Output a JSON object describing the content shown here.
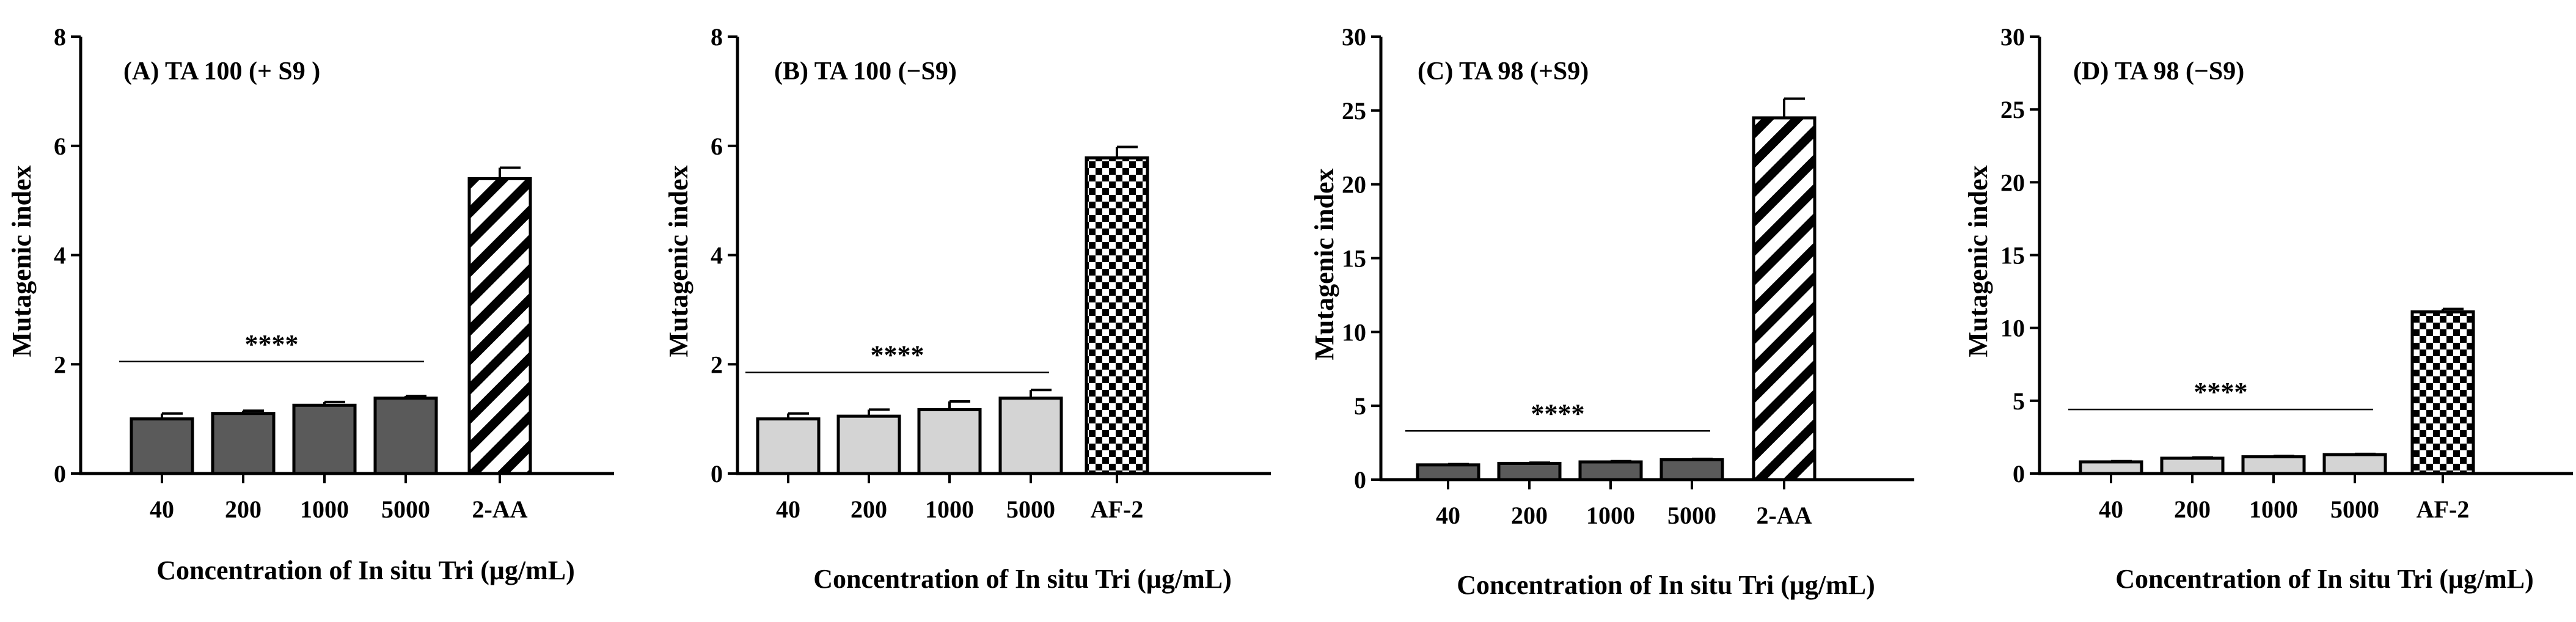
{
  "colors": {
    "dark_bar": "#5a5a5a",
    "light_bar": "#d4d4d4",
    "axis": "#000000",
    "background": "#ffffff"
  },
  "chart_data": [
    {
      "id": "A",
      "type": "bar",
      "title": "(A) TA 100 (+ S9 )",
      "ylabel": "Mutagenic index",
      "xlabel": "Concentration of In situ Tri (μg/mL)",
      "ylim": [
        0,
        8
      ],
      "yticks": [
        "0",
        "2",
        "4",
        "6",
        "8"
      ],
      "categories": [
        "40",
        "200",
        "1000",
        "5000",
        "2-AA"
      ],
      "values": [
        1.0,
        1.1,
        1.25,
        1.38,
        5.4
      ],
      "errors": [
        0.1,
        0.05,
        0.06,
        0.04,
        0.2
      ],
      "fills": [
        "solid-dark",
        "solid-dark",
        "solid-dark",
        "solid-dark",
        "diagonal"
      ],
      "significance": "****",
      "significance_y": 2.05,
      "significance_span": [
        0,
        3
      ]
    },
    {
      "id": "B",
      "type": "bar",
      "title": "(B) TA 100 (−S9)",
      "ylabel": "Mutagenic index",
      "xlabel": "Concentration of In situ Tri (μg/mL)",
      "ylim": [
        0,
        8
      ],
      "yticks": [
        "0",
        "2",
        "4",
        "6",
        "8"
      ],
      "categories": [
        "40",
        "200",
        "1000",
        "5000",
        "AF-2"
      ],
      "values": [
        1.0,
        1.05,
        1.17,
        1.38,
        5.78
      ],
      "errors": [
        0.1,
        0.12,
        0.15,
        0.15,
        0.2
      ],
      "fills": [
        "solid-light",
        "solid-light",
        "solid-light",
        "solid-light",
        "checker"
      ],
      "significance": "****",
      "significance_y": 1.85,
      "significance_span": [
        0,
        3
      ]
    },
    {
      "id": "C",
      "type": "bar",
      "title": "(C) TA 98 (+S9)",
      "ylabel": "Mutagenic index",
      "xlabel": "Concentration of In situ Tri (μg/mL)",
      "ylim": [
        0,
        30
      ],
      "yticks": [
        "0",
        "5",
        "10",
        "15",
        "20",
        "25",
        "30"
      ],
      "categories": [
        "40",
        "200",
        "1000",
        "5000",
        "2-AA"
      ],
      "values": [
        1.0,
        1.1,
        1.2,
        1.35,
        24.5
      ],
      "errors": [
        0.05,
        0.05,
        0.05,
        0.05,
        1.3
      ],
      "fills": [
        "solid-dark",
        "solid-dark",
        "solid-dark",
        "solid-dark",
        "diagonal"
      ],
      "significance": "****",
      "significance_y": 3.3,
      "significance_span": [
        0,
        3
      ]
    },
    {
      "id": "D",
      "type": "bar",
      "title": "(D) TA 98 (−S9)",
      "ylabel": "Mutagenic index",
      "xlabel": "Concentration of In situ Tri (μg/mL)",
      "ylim": [
        0,
        30
      ],
      "yticks": [
        "0",
        "5",
        "10",
        "15",
        "20",
        "25",
        "30"
      ],
      "categories": [
        "40",
        "200",
        "1000",
        "5000",
        "AF-2"
      ],
      "values": [
        0.8,
        1.05,
        1.15,
        1.3,
        11.1
      ],
      "errors": [
        0.05,
        0.05,
        0.05,
        0.05,
        0.2
      ],
      "fills": [
        "solid-light",
        "solid-light",
        "solid-light",
        "solid-light",
        "checker"
      ],
      "significance": "****",
      "significance_y": 4.4,
      "significance_span": [
        0,
        3
      ]
    }
  ]
}
